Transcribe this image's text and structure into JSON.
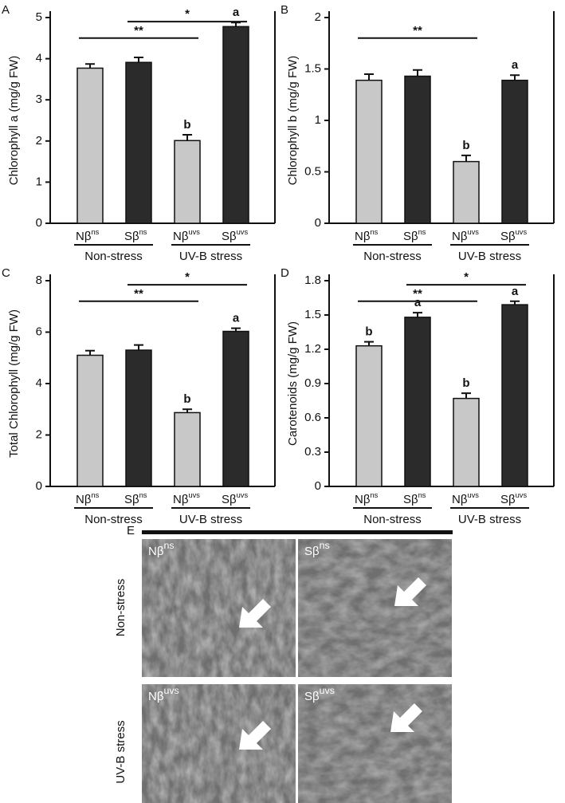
{
  "chart_data": [
    {
      "type": "bar",
      "panel": "A",
      "ylabel": "Chlorophyll a (mg/g FW)",
      "categories": [
        "Nβ",
        "Sβ",
        "Nβ",
        "Sβ"
      ],
      "category_superscripts": [
        "ns",
        "ns",
        "uvs",
        "uvs"
      ],
      "groups": [
        "Non-stress",
        "UV-B stress"
      ],
      "values": [
        3.77,
        3.91,
        2.01,
        4.78
      ],
      "errors": [
        0.1,
        0.12,
        0.14,
        0.1
      ],
      "colors": [
        "#c8c8c8",
        "#2b2b2b",
        "#c8c8c8",
        "#2b2b2b"
      ],
      "letters": [
        null,
        null,
        "b",
        "a"
      ],
      "significance": [
        {
          "text": "**",
          "from": 0,
          "to": 2
        },
        {
          "text": "*",
          "from": 1,
          "to": 3
        }
      ],
      "ylim": [
        0,
        5
      ],
      "yticks": [
        0,
        1,
        2,
        3,
        4,
        5
      ]
    },
    {
      "type": "bar",
      "panel": "B",
      "ylabel": "Chlorophyll b (mg/g FW)",
      "categories": [
        "Nβ",
        "Sβ",
        "Nβ",
        "Sβ"
      ],
      "category_superscripts": [
        "ns",
        "ns",
        "uvs",
        "uvs"
      ],
      "groups": [
        "Non-stress",
        "UV-B stress"
      ],
      "values": [
        1.39,
        1.43,
        0.6,
        1.39
      ],
      "errors": [
        0.06,
        0.06,
        0.06,
        0.05
      ],
      "colors": [
        "#c8c8c8",
        "#2b2b2b",
        "#c8c8c8",
        "#2b2b2b"
      ],
      "letters": [
        null,
        null,
        "b",
        "a"
      ],
      "significance": [
        {
          "text": "**",
          "from": 0,
          "to": 2
        }
      ],
      "ylim": [
        0,
        2
      ],
      "yticks": [
        0,
        0.5,
        1,
        1.5,
        2
      ]
    },
    {
      "type": "bar",
      "panel": "C",
      "ylabel": "Total Chlorophyll (mg/g FW)",
      "categories": [
        "Nβ",
        "Sβ",
        "Nβ",
        "Sβ"
      ],
      "category_superscripts": [
        "ns",
        "ns",
        "uvs",
        "uvs"
      ],
      "groups": [
        "Non-stress",
        "UV-B stress"
      ],
      "values": [
        5.1,
        5.3,
        2.87,
        6.03
      ],
      "errors": [
        0.18,
        0.2,
        0.13,
        0.12
      ],
      "colors": [
        "#c8c8c8",
        "#2b2b2b",
        "#c8c8c8",
        "#2b2b2b"
      ],
      "letters": [
        null,
        null,
        "b",
        "a"
      ],
      "significance": [
        {
          "text": "**",
          "from": 0,
          "to": 2
        },
        {
          "text": "*",
          "from": 1,
          "to": 3
        }
      ],
      "ylim": [
        0,
        8
      ],
      "yticks": [
        0,
        2,
        4,
        6,
        8
      ]
    },
    {
      "type": "bar",
      "panel": "D",
      "ylabel": "Carotenoids (mg/g FW)",
      "categories": [
        "Nβ",
        "Sβ",
        "Nβ",
        "Sβ"
      ],
      "category_superscripts": [
        "ns",
        "ns",
        "uvs",
        "uvs"
      ],
      "groups": [
        "Non-stress",
        "UV-B stress"
      ],
      "values": [
        1.23,
        1.48,
        0.77,
        1.59
      ],
      "errors": [
        0.035,
        0.04,
        0.045,
        0.03
      ],
      "colors": [
        "#c8c8c8",
        "#2b2b2b",
        "#c8c8c8",
        "#2b2b2b"
      ],
      "letters": [
        "b",
        "a",
        "b",
        "a"
      ],
      "significance": [
        {
          "text": "**",
          "from": 0,
          "to": 2
        },
        {
          "text": "*",
          "from": 1,
          "to": 3
        }
      ],
      "ylim": [
        0,
        1.8
      ],
      "yticks": [
        0,
        0.3,
        0.6,
        0.9,
        1.2,
        1.5,
        1.8
      ]
    }
  ],
  "micrographs": {
    "panel": "E",
    "rows": [
      "Non-stress",
      "UV-B stress"
    ],
    "images": [
      {
        "base": "Nβ",
        "sup": "ns"
      },
      {
        "base": "Sβ",
        "sup": "ns"
      },
      {
        "base": "Nβ",
        "sup": "uvs"
      },
      {
        "base": "Sβ",
        "sup": "uvs"
      }
    ]
  }
}
